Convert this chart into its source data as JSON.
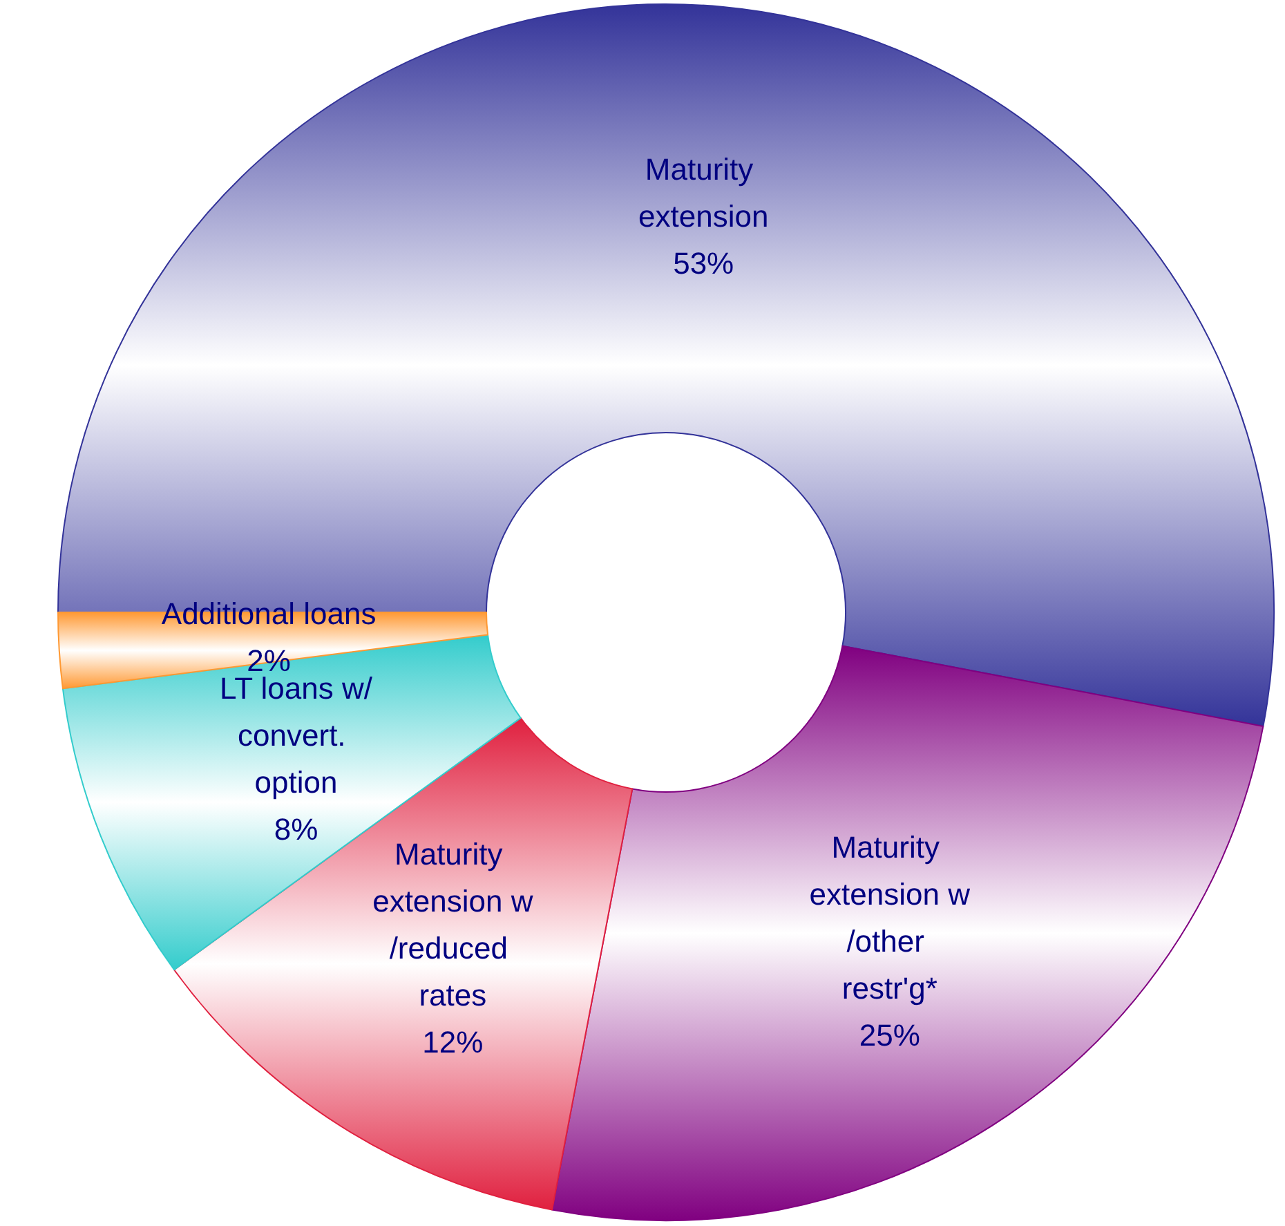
{
  "chart_data": {
    "type": "donut",
    "categories": [
      "Maturity extension",
      "Maturity extension w/other restr'g*",
      "Maturity extension w/reduced rates",
      "LT loans w/convert. option",
      "Additional loans"
    ],
    "values": [
      53,
      25,
      12,
      8,
      2
    ],
    "colors": [
      "#333399",
      "#800080",
      "#e0203f",
      "#33cccc",
      "#ff9933"
    ],
    "value_labels": [
      "53%",
      "25%",
      "12%",
      "8%",
      "2%"
    ],
    "legend": false
  }
}
